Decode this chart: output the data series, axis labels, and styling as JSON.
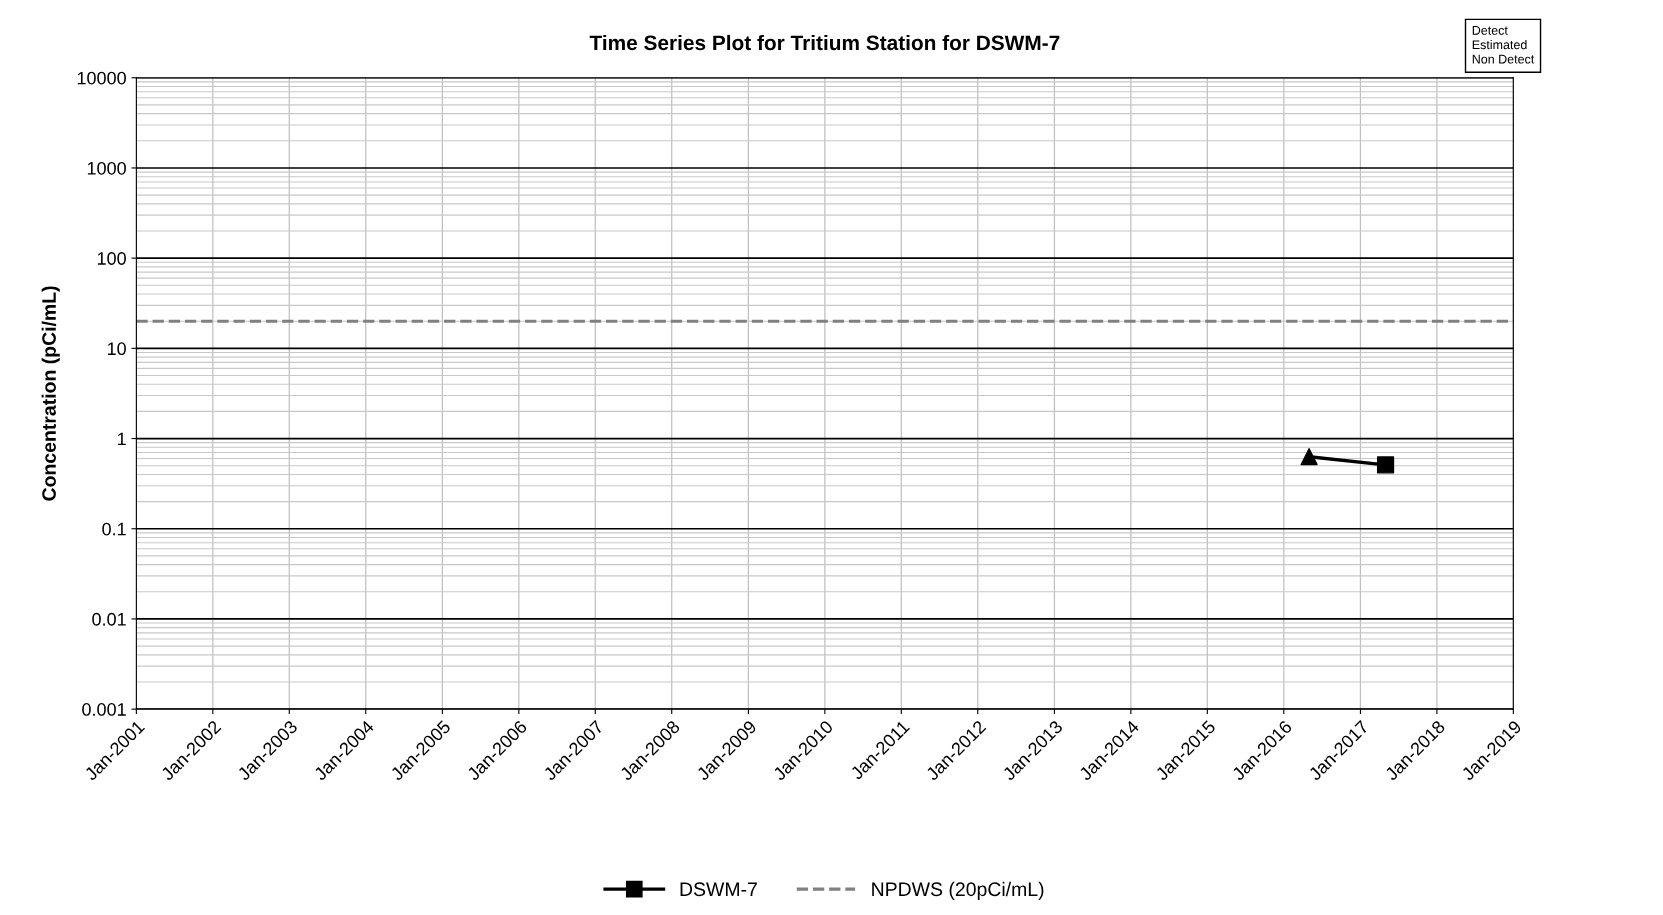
{
  "chart_data": {
    "type": "line",
    "title": "Time Series Plot for Tritium Station for DSWM-7",
    "ylabel": "Concentration (pCi/mL)",
    "series": [
      {
        "color": "#000000",
        "marker": "none",
        "x": [
          "2016-05",
          "2017-05"
        ],
        "values": [
          0.63,
          0.51
        ]
      },
      {
        "name": "DSWM-7",
        "color": "#000000",
        "type": "scatter",
        "marker": "square",
        "x": [
          "2017-05"
        ],
        "values": [
          0.51
        ]
      },
      {
        "color": "#000000",
        "type": "scatter",
        "marker": "triangle",
        "x": [
          "2016-05"
        ],
        "values": [
          0.63
        ]
      }
    ],
    "ref_lines": [
      {
        "axis": "y",
        "value": 20,
        "label": "NPDWS (20pCi/mL)",
        "color": "#808080",
        "line_style": "dashed"
      }
    ],
    "annotations": [
      "Detect",
      "Estimated",
      "Non Detect"
    ],
    "log": "y",
    "grid": true,
    "legend": "bottom",
    "line_style": "solid",
    "xlim": [
      "2001-01",
      "2019-01"
    ],
    "xticks": [
      {
        "value": "2001-01",
        "label": "Jan-2001"
      },
      {
        "value": "2002-01",
        "label": "Jan-2002"
      },
      {
        "value": "2003-01",
        "label": "Jan-2003"
      },
      {
        "value": "2004-01",
        "label": "Jan-2004"
      },
      {
        "value": "2005-01",
        "label": "Jan-2005"
      },
      {
        "value": "2006-01",
        "label": "Jan-2006"
      },
      {
        "value": "2007-01",
        "label": "Jan-2007"
      },
      {
        "value": "2008-01",
        "label": "Jan-2008"
      },
      {
        "value": "2009-01",
        "label": "Jan-2009"
      },
      {
        "value": "2010-01",
        "label": "Jan-2010"
      },
      {
        "value": "2011-01",
        "label": "Jan-2011"
      },
      {
        "value": "2012-01",
        "label": "Jan-2012"
      },
      {
        "value": "2013-01",
        "label": "Jan-2013"
      },
      {
        "value": "2014-01",
        "label": "Jan-2014"
      },
      {
        "value": "2015-01",
        "label": "Jan-2015"
      },
      {
        "value": "2016-01",
        "label": "Jan-2016"
      },
      {
        "value": "2017-01",
        "label": "Jan-2017"
      },
      {
        "value": "2018-01",
        "label": "Jan-2018"
      },
      {
        "value": "2019-01",
        "label": "Jan-2019"
      }
    ],
    "ylim": [
      0.001,
      10000
    ],
    "yticks": [
      {
        "value": 0.001,
        "label": "0.001"
      },
      {
        "value": 0.01,
        "label": "0.01"
      },
      {
        "value": 0.1,
        "label": "0.1"
      },
      {
        "value": 1,
        "label": "1"
      },
      {
        "value": 10,
        "label": "10"
      },
      {
        "value": 100,
        "label": "100"
      },
      {
        "value": 1000,
        "label": "1000"
      },
      {
        "value": 10000,
        "label": "10000"
      }
    ]
  }
}
